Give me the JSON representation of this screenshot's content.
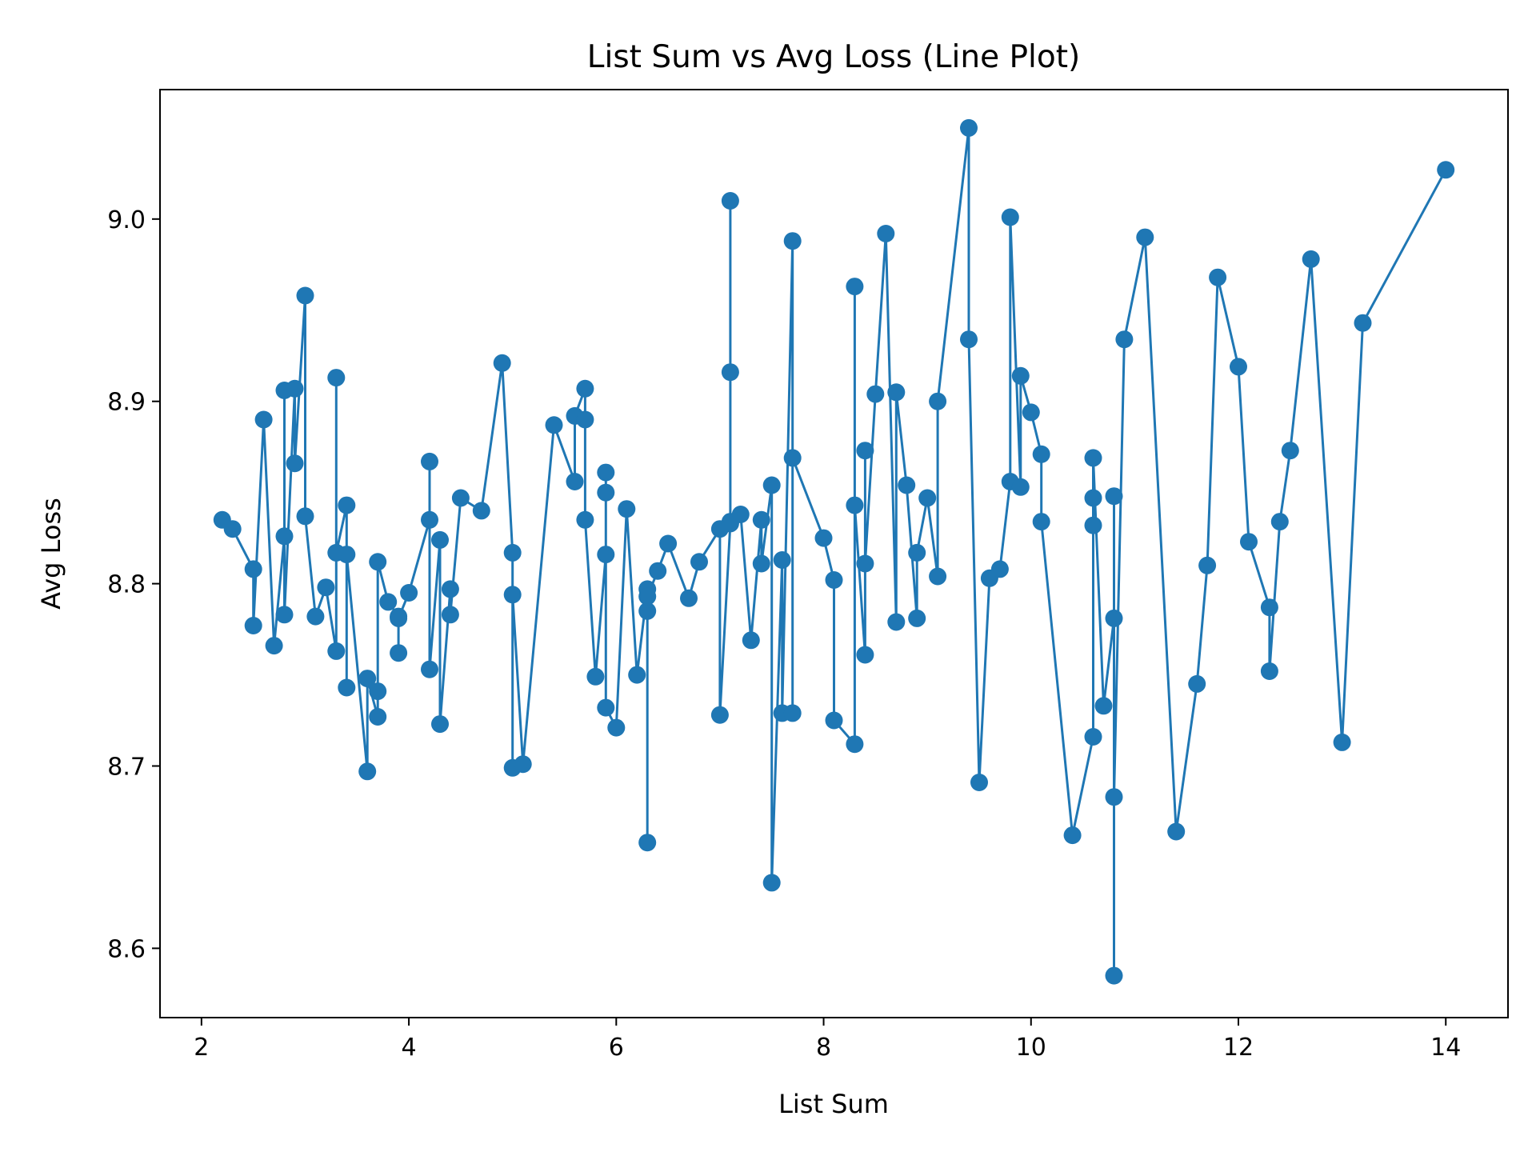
{
  "chart_data": {
    "type": "line",
    "title": "List Sum vs Avg Loss (Line Plot)",
    "xlabel": "List Sum",
    "ylabel": "Avg Loss",
    "xlim": [
      1.6,
      14.6
    ],
    "ylim": [
      8.562,
      9.071
    ],
    "xticks": [
      2,
      4,
      6,
      8,
      10,
      12,
      14
    ],
    "yticks": [
      8.6,
      8.7,
      8.8,
      8.9,
      9.0
    ],
    "xtick_labels": [
      "2",
      "4",
      "6",
      "8",
      "10",
      "12",
      "14"
    ],
    "ytick_labels": [
      "8.6",
      "8.7",
      "8.8",
      "8.9",
      "9.0"
    ],
    "grid": false,
    "series": [
      {
        "color": "#1f77b4",
        "marker": "circle",
        "points": [
          [
            2.2,
            8.835
          ],
          [
            2.3,
            8.83
          ],
          [
            2.5,
            8.808
          ],
          [
            2.5,
            8.777
          ],
          [
            2.6,
            8.89
          ],
          [
            2.7,
            8.766
          ],
          [
            2.8,
            8.826
          ],
          [
            2.8,
            8.906
          ],
          [
            2.8,
            8.783
          ],
          [
            2.9,
            8.907
          ],
          [
            2.9,
            8.866
          ],
          [
            3.0,
            8.958
          ],
          [
            3.0,
            8.837
          ],
          [
            3.1,
            8.782
          ],
          [
            3.2,
            8.798
          ],
          [
            3.3,
            8.763
          ],
          [
            3.3,
            8.913
          ],
          [
            3.3,
            8.817
          ],
          [
            3.4,
            8.843
          ],
          [
            3.4,
            8.743
          ],
          [
            3.4,
            8.816
          ],
          [
            3.6,
            8.697
          ],
          [
            3.6,
            8.748
          ],
          [
            3.7,
            8.727
          ],
          [
            3.7,
            8.741
          ],
          [
            3.7,
            8.812
          ],
          [
            3.8,
            8.79
          ],
          [
            3.9,
            8.782
          ],
          [
            3.9,
            8.762
          ],
          [
            3.9,
            8.781
          ],
          [
            4.0,
            8.795
          ],
          [
            4.2,
            8.835
          ],
          [
            4.2,
            8.867
          ],
          [
            4.2,
            8.753
          ],
          [
            4.3,
            8.824
          ],
          [
            4.3,
            8.723
          ],
          [
            4.4,
            8.797
          ],
          [
            4.4,
            8.783
          ],
          [
            4.5,
            8.847
          ],
          [
            4.7,
            8.84
          ],
          [
            4.9,
            8.921
          ],
          [
            5.0,
            8.817
          ],
          [
            5.0,
            8.699
          ],
          [
            5.0,
            8.794
          ],
          [
            5.1,
            8.701
          ],
          [
            5.4,
            8.887
          ],
          [
            5.6,
            8.856
          ],
          [
            5.6,
            8.892
          ],
          [
            5.7,
            8.907
          ],
          [
            5.7,
            8.89
          ],
          [
            5.7,
            8.835
          ],
          [
            5.8,
            8.749
          ],
          [
            5.9,
            8.816
          ],
          [
            5.9,
            8.861
          ],
          [
            5.9,
            8.85
          ],
          [
            5.9,
            8.732
          ],
          [
            6.0,
            8.721
          ],
          [
            6.1,
            8.841
          ],
          [
            6.2,
            8.75
          ],
          [
            6.3,
            8.797
          ],
          [
            6.3,
            8.785
          ],
          [
            6.3,
            8.658
          ],
          [
            6.3,
            8.793
          ],
          [
            6.4,
            8.807
          ],
          [
            6.5,
            8.822
          ],
          [
            6.7,
            8.792
          ],
          [
            6.8,
            8.812
          ],
          [
            7.0,
            8.83
          ],
          [
            7.0,
            8.728
          ],
          [
            7.1,
            8.833
          ],
          [
            7.1,
            9.01
          ],
          [
            7.1,
            8.916
          ],
          [
            7.1,
            8.834
          ],
          [
            7.2,
            8.838
          ],
          [
            7.3,
            8.769
          ],
          [
            7.4,
            8.835
          ],
          [
            7.4,
            8.811
          ],
          [
            7.5,
            8.854
          ],
          [
            7.5,
            8.636
          ],
          [
            7.6,
            8.813
          ],
          [
            7.6,
            8.729
          ],
          [
            7.7,
            8.988
          ],
          [
            7.7,
            8.729
          ],
          [
            7.7,
            8.869
          ],
          [
            8.0,
            8.825
          ],
          [
            8.1,
            8.802
          ],
          [
            8.1,
            8.725
          ],
          [
            8.3,
            8.712
          ],
          [
            8.3,
            8.963
          ],
          [
            8.3,
            8.843
          ],
          [
            8.4,
            8.761
          ],
          [
            8.4,
            8.873
          ],
          [
            8.4,
            8.811
          ],
          [
            8.5,
            8.904
          ],
          [
            8.6,
            8.992
          ],
          [
            8.7,
            8.779
          ],
          [
            8.7,
            8.905
          ],
          [
            8.8,
            8.854
          ],
          [
            8.9,
            8.781
          ],
          [
            8.9,
            8.817
          ],
          [
            9.0,
            8.847
          ],
          [
            9.1,
            8.804
          ],
          [
            9.1,
            8.9
          ],
          [
            9.4,
            9.05
          ],
          [
            9.4,
            8.934
          ],
          [
            9.5,
            8.691
          ],
          [
            9.6,
            8.803
          ],
          [
            9.7,
            8.808
          ],
          [
            9.8,
            8.856
          ],
          [
            9.8,
            9.001
          ],
          [
            9.9,
            8.853
          ],
          [
            9.9,
            8.914
          ],
          [
            10.0,
            8.894
          ],
          [
            10.1,
            8.871
          ],
          [
            10.1,
            8.834
          ],
          [
            10.4,
            8.662
          ],
          [
            10.6,
            8.716
          ],
          [
            10.6,
            8.832
          ],
          [
            10.6,
            8.847
          ],
          [
            10.6,
            8.869
          ],
          [
            10.7,
            8.733
          ],
          [
            10.8,
            8.781
          ],
          [
            10.8,
            8.848
          ],
          [
            10.8,
            8.585
          ],
          [
            10.8,
            8.683
          ],
          [
            10.9,
            8.934
          ],
          [
            11.1,
            8.99
          ],
          [
            11.4,
            8.664
          ],
          [
            11.6,
            8.745
          ],
          [
            11.7,
            8.81
          ],
          [
            11.8,
            8.968
          ],
          [
            12.0,
            8.919
          ],
          [
            12.1,
            8.823
          ],
          [
            12.3,
            8.787
          ],
          [
            12.3,
            8.752
          ],
          [
            12.4,
            8.834
          ],
          [
            12.5,
            8.873
          ],
          [
            12.7,
            8.978
          ],
          [
            13.0,
            8.713
          ],
          [
            13.2,
            8.943
          ],
          [
            14.0,
            9.027
          ]
        ]
      }
    ]
  }
}
